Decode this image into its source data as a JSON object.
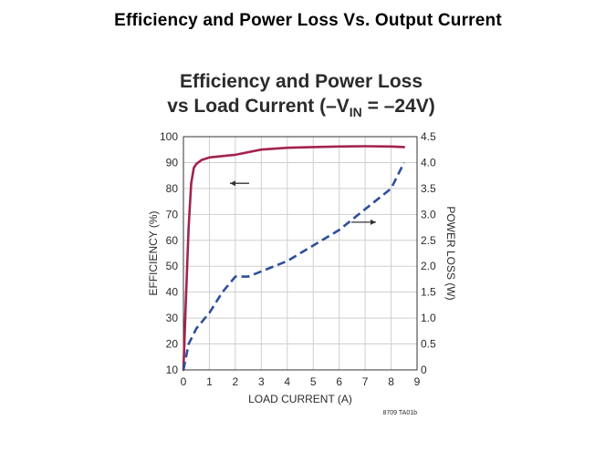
{
  "page_title": "Efficiency and Power Loss Vs. Output Current",
  "chart_data": {
    "type": "line",
    "title_line1": "Efficiency and Power Loss",
    "title_line2_pre": "vs Load Current (–V",
    "title_line2_sub": "IN",
    "title_line2_post": " = –24V)",
    "xlabel": "LOAD CURRENT (A)",
    "ylabel_left": "EFFICIENCY (%)",
    "ylabel_right": "POWER LOSS (W)",
    "xlim": [
      0,
      9
    ],
    "ylim_left": [
      10,
      100
    ],
    "ylim_right": [
      0,
      4.5
    ],
    "x_ticks": [
      "0",
      "1",
      "2",
      "3",
      "4",
      "5",
      "6",
      "7",
      "8",
      "9"
    ],
    "y_left_ticks": [
      "10",
      "20",
      "30",
      "40",
      "50",
      "60",
      "70",
      "80",
      "90",
      "100"
    ],
    "y_right_ticks": [
      "0",
      "0.5",
      "1.0",
      "1.5",
      "2.0",
      "2.5",
      "3.0",
      "3.5",
      "4.0",
      "4.5"
    ],
    "grid": true,
    "footnote": "8709 TA01b",
    "series": [
      {
        "id": "efficiency",
        "axis": "left",
        "color": "#a3234b",
        "style": "solid",
        "arrow": "left",
        "x": [
          0,
          0.1,
          0.2,
          0.3,
          0.4,
          0.5,
          0.7,
          1.0,
          1.5,
          2.0,
          3.0,
          4.0,
          5.0,
          6.0,
          7.0,
          8.0,
          8.5
        ],
        "y": [
          10,
          38,
          65,
          82,
          88,
          89.5,
          91,
          92,
          92.5,
          93,
          95,
          95.7,
          96,
          96.2,
          96.3,
          96.2,
          96
        ]
      },
      {
        "id": "power_loss",
        "axis": "right",
        "color": "#2e4f9c",
        "style": "dashed",
        "arrow": "right",
        "x": [
          0,
          0.2,
          0.5,
          1.0,
          1.5,
          2.0,
          2.5,
          3.0,
          4.0,
          5.0,
          6.0,
          7.0,
          8.0,
          8.5
        ],
        "y": [
          0,
          0.5,
          0.8,
          1.1,
          1.5,
          1.8,
          1.8,
          1.9,
          2.1,
          2.4,
          2.7,
          3.1,
          3.5,
          4.0
        ]
      }
    ]
  }
}
